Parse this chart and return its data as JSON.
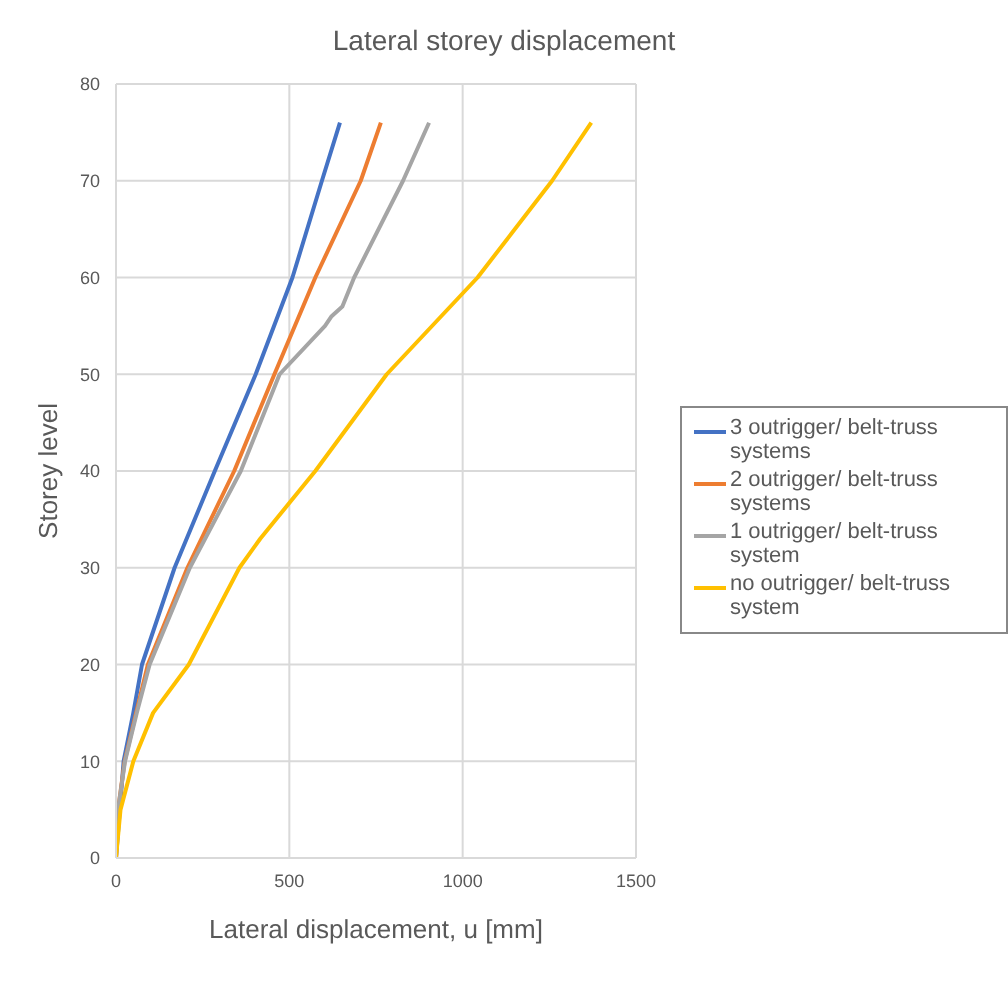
{
  "chart_data": {
    "type": "line",
    "title": "Lateral storey displacement",
    "xlabel": "Lateral displacement, u [mm]",
    "ylabel": "Storey level",
    "xlim": [
      0,
      1500
    ],
    "xticks": [
      0,
      500,
      1000,
      1500
    ],
    "ylim": [
      0,
      80
    ],
    "yticks": [
      0,
      10,
      20,
      30,
      40,
      50,
      60,
      70,
      80
    ],
    "grid": true,
    "legend": "right",
    "marker": "none",
    "series": [
      {
        "name": "3 outrigger/ belt-truss systems",
        "color": "#4472c4",
        "x": [
          0,
          22,
          50,
          75,
          169,
          285,
          403,
          509,
          594,
          646
        ],
        "values": [
          0,
          10,
          15,
          20,
          30,
          40,
          50,
          60,
          70,
          76
        ]
      },
      {
        "name": "2 outrigger/ belt-truss systems",
        "color": "#ed7d31",
        "x": [
          0,
          6,
          25,
          58,
          92,
          206,
          341,
          457,
          575,
          706,
          764
        ],
        "values": [
          0,
          5,
          10,
          15,
          20,
          30,
          40,
          50,
          60,
          70,
          76
        ]
      },
      {
        "name": "1 outrigger/ belt-truss system",
        "color": "#a5a5a5",
        "x": [
          0,
          6,
          26,
          60,
          97,
          213,
          360,
          472,
          603,
          622,
          653,
          687,
          828,
          903
        ],
        "values": [
          0,
          5,
          10,
          15,
          20,
          30,
          40,
          50,
          55,
          56,
          57,
          60,
          70,
          76
        ]
      },
      {
        "name": "no outrigger/ belt-truss system",
        "color": "#ffc000",
        "x": [
          0,
          13,
          50,
          107,
          210,
          356,
          416,
          575,
          781,
          1043,
          1258,
          1371
        ],
        "values": [
          0,
          5,
          10,
          15,
          20,
          30,
          33,
          40,
          50,
          60,
          70,
          76
        ]
      }
    ]
  }
}
